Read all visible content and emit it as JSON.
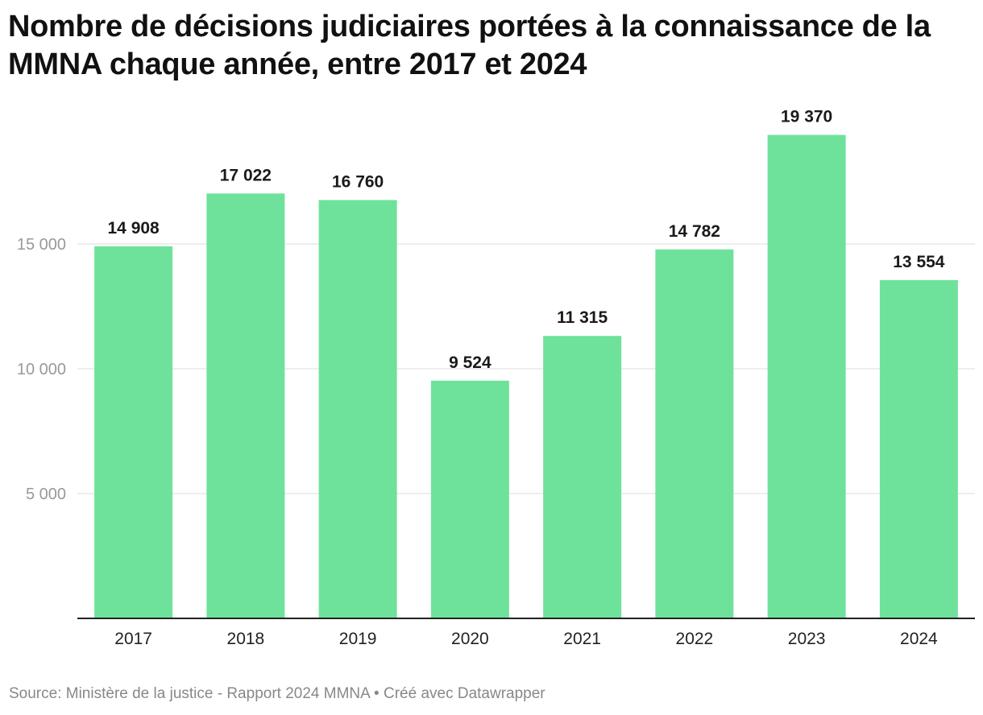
{
  "title": "Nombre de décisions judiciaires portées à la connaissance de la MMNA chaque année, entre 2017 et 2024",
  "footer": {
    "source": "Source: Ministère de la justice - Rapport 2024 MMNA",
    "separator": " • ",
    "credit": "Créé avec Datawrapper"
  },
  "colors": {
    "bar": "#6ee29a",
    "grid": "#dddddd",
    "axis": "#222222",
    "tick_label": "#999999",
    "value_label": "#1a1a1a"
  },
  "chart_data": {
    "type": "bar",
    "categories": [
      "2017",
      "2018",
      "2019",
      "2020",
      "2021",
      "2022",
      "2023",
      "2024"
    ],
    "values": [
      14908,
      17022,
      16760,
      9524,
      11315,
      14782,
      19370,
      13554
    ],
    "value_labels": [
      "14 908",
      "17 022",
      "16 760",
      "9 524",
      "11 315",
      "14 782",
      "19 370",
      "13 554"
    ],
    "yticks": [
      5000,
      10000,
      15000
    ],
    "ytick_labels": [
      "5 000",
      "10 000",
      "15 000"
    ],
    "ylim": [
      0,
      20000
    ],
    "grid": true,
    "legend": "none",
    "xlabel": "",
    "ylabel": ""
  }
}
